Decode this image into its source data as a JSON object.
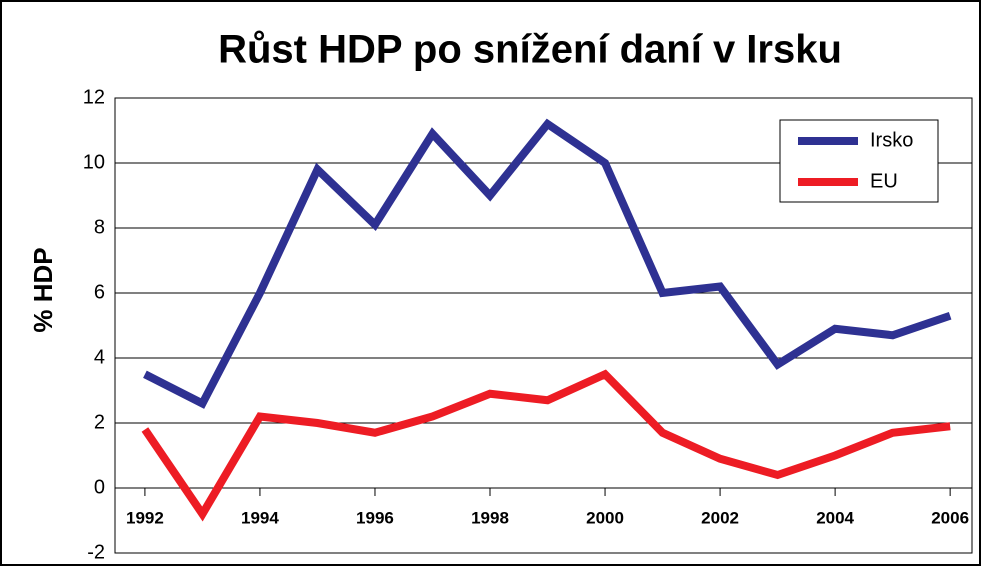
{
  "chart_data": {
    "type": "line",
    "title": "Růst HDP po snížení daní v Irsku",
    "y_label": "% HDP",
    "x": [
      1992,
      1993,
      1994,
      1995,
      1996,
      1997,
      1998,
      1999,
      2000,
      2001,
      2002,
      2003,
      2004,
      2005,
      2006
    ],
    "series": [
      {
        "name": "Irsko",
        "color": "#2e3192",
        "values": [
          3.5,
          2.6,
          6.0,
          9.8,
          8.1,
          10.9,
          9.0,
          11.2,
          10.0,
          6.0,
          6.2,
          3.8,
          4.9,
          4.7,
          5.3
        ]
      },
      {
        "name": "EU",
        "color": "#ed1c24",
        "values": [
          1.8,
          -0.8,
          2.2,
          2.0,
          1.7,
          2.2,
          2.9,
          2.7,
          3.5,
          1.7,
          0.9,
          0.4,
          1.0,
          1.7,
          1.9
        ]
      }
    ],
    "xlim": [
      1991.48,
      2006.38
    ],
    "xticks": [
      1992,
      1994,
      1996,
      1998,
      2000,
      2002,
      2004,
      2006
    ],
    "ylim": [
      -2,
      12
    ],
    "yticks": [
      -2,
      0,
      2,
      4,
      6,
      8,
      10,
      12
    ],
    "grid": true,
    "legend": "upper right"
  }
}
